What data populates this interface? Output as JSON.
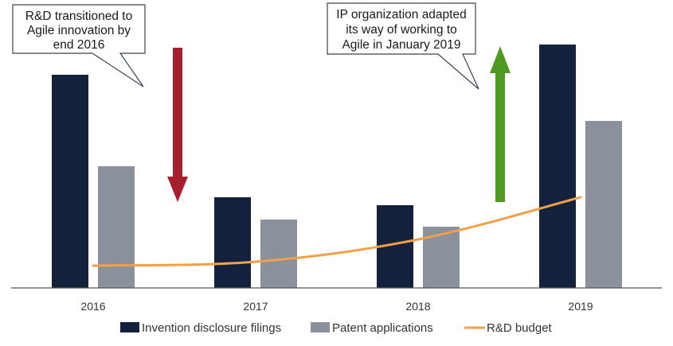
{
  "chart_data": {
    "type": "bar",
    "categories": [
      "2016",
      "2017",
      "2018",
      "2019"
    ],
    "series": [
      {
        "name": "Invention disclosure filings",
        "kind": "bar",
        "color": "#14213d",
        "values": [
          268,
          114,
          104,
          306
        ]
      },
      {
        "name": "Patent applications",
        "kind": "bar",
        "color": "#8a909c",
        "values": [
          153,
          86,
          77,
          210
        ]
      },
      {
        "name": "R&D budget",
        "kind": "line",
        "color": "#f0a048",
        "values": [
          28,
          33,
          61,
          114
        ]
      }
    ],
    "ylim": [
      0,
      320
    ],
    "y_axis_visible": false,
    "grid": false,
    "legend_position": "bottom",
    "annotations": [
      {
        "lines": [
          "R&D transitioned to",
          "Agile innovation by",
          "end 2016"
        ]
      },
      {
        "lines": [
          "IP organization adapted",
          "its way of working to",
          "Agile in January 2019"
        ]
      }
    ],
    "arrows": [
      {
        "direction": "down",
        "color": "#a5202c"
      },
      {
        "direction": "up",
        "color": "#4e9a22"
      }
    ]
  }
}
